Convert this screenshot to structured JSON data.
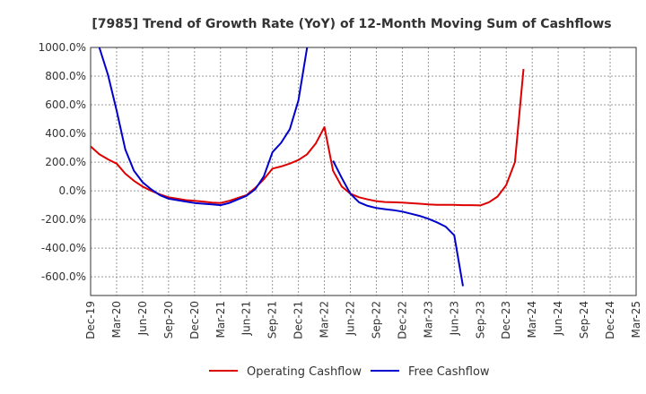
{
  "chart_data": {
    "type": "line",
    "title": "[7985]  Trend of Growth Rate (YoY) of 12-Month Moving Sum of Cashflows",
    "xlabel": "",
    "ylabel": "",
    "ylim": [
      -730,
      1000
    ],
    "yticks": [
      -600,
      -400,
      -200,
      0,
      200,
      400,
      600,
      800,
      1000
    ],
    "ytick_labels": [
      "-600.0%",
      "-400.0%",
      "-200.0%",
      "0.0%",
      "200.0%",
      "400.0%",
      "600.0%",
      "800.0%",
      "1000.0%"
    ],
    "xticks": [
      "Dec-19",
      "Mar-20",
      "Jun-20",
      "Sep-20",
      "Dec-20",
      "Mar-21",
      "Jun-21",
      "Sep-21",
      "Dec-21",
      "Mar-22",
      "Jun-22",
      "Sep-22",
      "Dec-22",
      "Mar-23",
      "Jun-23",
      "Sep-23",
      "Dec-23",
      "Mar-24",
      "Jun-24",
      "Sep-24",
      "Dec-24",
      "Mar-25"
    ],
    "grid": true,
    "legend_position": "bottom",
    "series": [
      {
        "name": "Operating Cashflow",
        "color": "#dd0000",
        "points": [
          [
            "Dec-19",
            310
          ],
          [
            "Jan-20",
            255
          ],
          [
            "Feb-20",
            220
          ],
          [
            "Mar-20",
            190
          ],
          [
            "Apr-20",
            120
          ],
          [
            "May-20",
            70
          ],
          [
            "Jun-20",
            30
          ],
          [
            "Jul-20",
            0
          ],
          [
            "Aug-20",
            -25
          ],
          [
            "Sep-20",
            -45
          ],
          [
            "Oct-20",
            -55
          ],
          [
            "Nov-20",
            -65
          ],
          [
            "Dec-20",
            -70
          ],
          [
            "Jan-21",
            -75
          ],
          [
            "Feb-21",
            -82
          ],
          [
            "Mar-21",
            -85
          ],
          [
            "Apr-21",
            -70
          ],
          [
            "May-21",
            -50
          ],
          [
            "Jun-21",
            -30
          ],
          [
            "Jul-21",
            20
          ],
          [
            "Aug-21",
            80
          ],
          [
            "Sep-21",
            155
          ],
          [
            "Oct-21",
            170
          ],
          [
            "Nov-21",
            190
          ],
          [
            "Dec-21",
            215
          ],
          [
            "Jan-22",
            255
          ],
          [
            "Feb-22",
            330
          ],
          [
            "Mar-22",
            445
          ],
          [
            "Apr-22",
            140
          ],
          [
            "May-22",
            30
          ],
          [
            "Jun-22",
            -20
          ],
          [
            "Jul-22",
            -45
          ],
          [
            "Aug-22",
            -60
          ],
          [
            "Sep-22",
            -72
          ],
          [
            "Oct-22",
            -78
          ],
          [
            "Nov-22",
            -80
          ],
          [
            "Dec-22",
            -82
          ],
          [
            "Jan-23",
            -86
          ],
          [
            "Feb-23",
            -90
          ],
          [
            "Mar-23",
            -95
          ],
          [
            "Apr-23",
            -98
          ],
          [
            "May-23",
            -98
          ],
          [
            "Jun-23",
            -98
          ],
          [
            "Jul-23",
            -100
          ],
          [
            "Aug-23",
            -100
          ],
          [
            "Sep-23",
            -102
          ],
          [
            "Oct-23",
            -80
          ],
          [
            "Nov-23",
            -40
          ],
          [
            "Dec-23",
            40
          ],
          [
            "Jan-24",
            200
          ],
          [
            "Feb-24",
            850
          ]
        ]
      },
      {
        "name": "Free Cashflow",
        "color": "#0000cc",
        "points": [
          [
            "Jan-20",
            1000
          ],
          [
            "Feb-20",
            810
          ],
          [
            "Mar-20",
            560
          ],
          [
            "Apr-20",
            290
          ],
          [
            "May-20",
            140
          ],
          [
            "Jun-20",
            60
          ],
          [
            "Jul-20",
            10
          ],
          [
            "Aug-20",
            -30
          ],
          [
            "Sep-20",
            -55
          ],
          [
            "Oct-20",
            -65
          ],
          [
            "Nov-20",
            -75
          ],
          [
            "Dec-20",
            -85
          ],
          [
            "Jan-21",
            -90
          ],
          [
            "Feb-21",
            -95
          ],
          [
            "Mar-21",
            -100
          ],
          [
            "Apr-21",
            -85
          ],
          [
            "May-21",
            -60
          ],
          [
            "Jun-21",
            -35
          ],
          [
            "Jul-21",
            10
          ],
          [
            "Aug-21",
            100
          ],
          [
            "Sep-21",
            270
          ],
          [
            "Oct-21",
            335
          ],
          [
            "Nov-21",
            430
          ],
          [
            "Dec-21",
            630
          ],
          [
            "Jan-22",
            1000
          ],
          null,
          [
            "Apr-22",
            210
          ],
          [
            "May-22",
            90
          ],
          [
            "Jun-22",
            -20
          ],
          [
            "Jul-22",
            -80
          ],
          [
            "Aug-22",
            -105
          ],
          [
            "Sep-22",
            -120
          ],
          [
            "Oct-22",
            -128
          ],
          [
            "Nov-22",
            -135
          ],
          [
            "Dec-22",
            -145
          ],
          [
            "Jan-23",
            -160
          ],
          [
            "Feb-23",
            -175
          ],
          [
            "Mar-23",
            -195
          ],
          [
            "Apr-23",
            -220
          ],
          [
            "May-23",
            -250
          ],
          [
            "Jun-23",
            -310
          ],
          [
            "Jul-23",
            -665
          ]
        ]
      }
    ]
  }
}
